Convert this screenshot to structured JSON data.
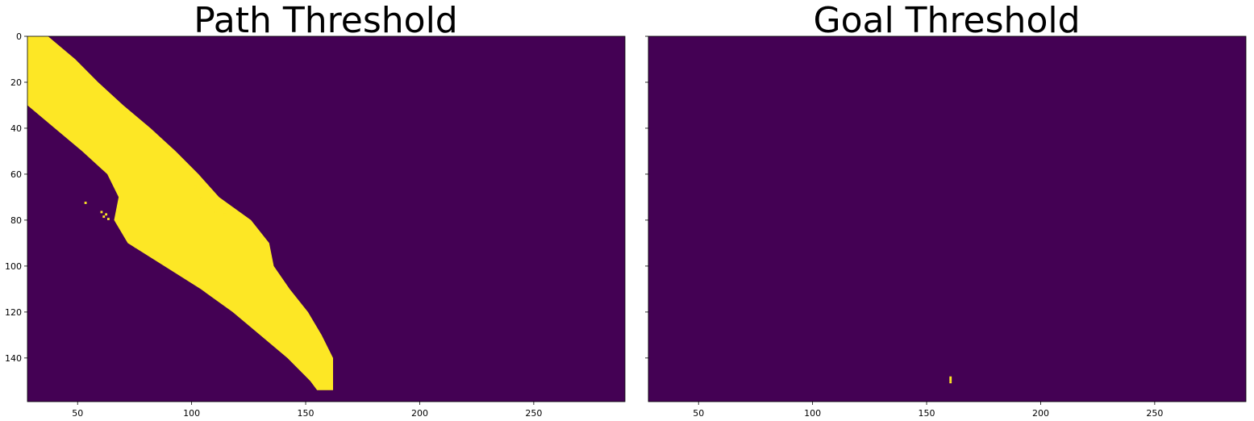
{
  "colors": {
    "background": "#440154",
    "foreground": "#fde725",
    "tick": "#000000"
  },
  "chart_data": [
    {
      "type": "heatmap",
      "title": "Path Threshold",
      "xlim": [
        28,
        290
      ],
      "ylim": [
        159,
        0
      ],
      "xticks": [
        50,
        100,
        150,
        200,
        250
      ],
      "yticks": [
        0,
        20,
        40,
        60,
        80,
        100,
        120,
        140
      ],
      "values_description_binary": "1 = thresholded path pixels",
      "band_rows": [
        {
          "y": 0,
          "x0": 28,
          "x1": 37
        },
        {
          "y": 10,
          "x0": 28,
          "x1": 49
        },
        {
          "y": 20,
          "x0": 28,
          "x1": 59
        },
        {
          "y": 30,
          "x0": 28,
          "x1": 70
        },
        {
          "y": 40,
          "x0": 40,
          "x1": 82
        },
        {
          "y": 50,
          "x0": 52,
          "x1": 93
        },
        {
          "y": 60,
          "x0": 63,
          "x1": 103
        },
        {
          "y": 70,
          "x0": 68,
          "x1": 112
        },
        {
          "y": 80,
          "x0": 66,
          "x1": 126
        },
        {
          "y": 90,
          "x0": 72,
          "x1": 134
        },
        {
          "y": 100,
          "x0": 88,
          "x1": 136
        },
        {
          "y": 110,
          "x0": 104,
          "x1": 143
        },
        {
          "y": 120,
          "x0": 118,
          "x1": 151
        },
        {
          "y": 130,
          "x0": 130,
          "x1": 157
        },
        {
          "y": 140,
          "x0": 142,
          "x1": 162
        },
        {
          "y": 150,
          "x0": 152,
          "x1": 162
        },
        {
          "y": 154,
          "x0": 155,
          "x1": 162
        }
      ],
      "specks": [
        [
          53,
          72
        ],
        [
          60,
          76
        ],
        [
          62,
          77
        ],
        [
          61,
          78
        ],
        [
          63,
          79
        ],
        [
          101,
          65
        ],
        [
          104,
          70
        ],
        [
          106,
          72
        ],
        [
          108,
          74
        ],
        [
          110,
          76
        ],
        [
          112,
          75
        ],
        [
          114,
          77
        ],
        [
          75,
          91
        ]
      ]
    },
    {
      "type": "heatmap",
      "title": "Goal Threshold",
      "xlim": [
        28,
        290
      ],
      "ylim": [
        159,
        0
      ],
      "xticks": [
        50,
        100,
        150,
        200,
        250
      ],
      "yticks": [
        0,
        20,
        40,
        60,
        80,
        100,
        120,
        140
      ],
      "values_description_binary": "1 = thresholded goal pixels",
      "band_rows": [],
      "specks": [
        [
          160,
          148
        ],
        [
          160,
          149
        ],
        [
          160,
          150
        ]
      ]
    }
  ]
}
